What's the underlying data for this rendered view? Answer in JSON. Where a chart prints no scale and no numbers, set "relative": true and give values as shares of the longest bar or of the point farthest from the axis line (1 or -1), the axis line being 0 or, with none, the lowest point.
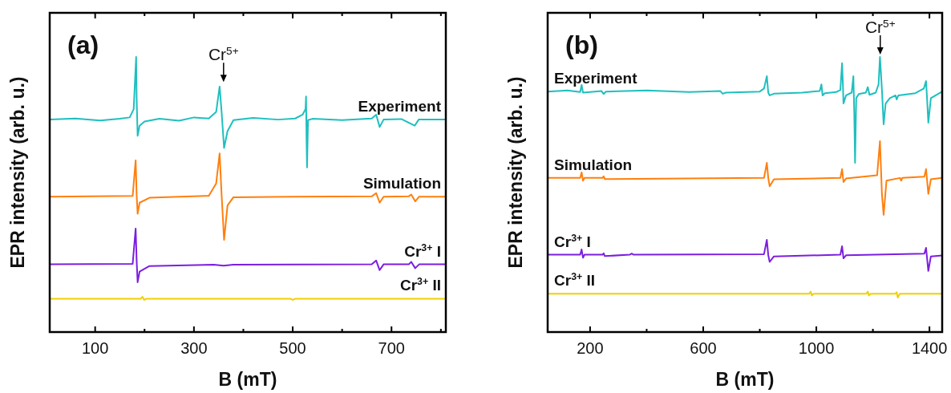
{
  "chart_data": [
    {
      "type": "line",
      "relative": true,
      "xlabel": "B (mT)",
      "ylabel": "EPR intensity (arb. u.)",
      "xlim": [
        8,
        810
      ],
      "xticks": [
        100,
        {
          "value": 200,
          "label": null
        },
        300,
        {
          "value": 400,
          "label": null
        },
        500,
        {
          "value": 600,
          "label": null
        },
        700,
        {
          "value": 800,
          "label": null
        }
      ],
      "annotations": [
        "(a)",
        {
          "text": "Cr$^{5+}$",
          "x": 360,
          "y": 0.9
        }
      ],
      "series": [
        {
          "name": "Experiment",
          "color": "#1fbfbf",
          "x": [
            8,
            60,
            110,
            150,
            170,
            178,
            183,
            184,
            186,
            190,
            200,
            230,
            270,
            300,
            330,
            345,
            352,
            356,
            361,
            368,
            380,
            420,
            470,
            505,
            520,
            526,
            527,
            528,
            529,
            531,
            540,
            600,
            660,
            669,
            676,
            684,
            720,
            747,
            755,
            810
          ],
          "values": [
            0.772,
            0.776,
            0.769,
            0.775,
            0.78,
            0.81,
            1.0,
            0.85,
            0.713,
            0.75,
            0.765,
            0.775,
            0.768,
            0.78,
            0.776,
            0.8,
            0.892,
            0.8,
            0.669,
            0.73,
            0.77,
            0.778,
            0.772,
            0.776,
            0.79,
            0.81,
            0.856,
            0.7,
            0.598,
            0.77,
            0.775,
            0.77,
            0.776,
            0.79,
            0.745,
            0.772,
            0.774,
            0.75,
            0.772,
            0.772
          ]
        },
        {
          "name": "Simulation",
          "color": "#ff7f0e",
          "x": [
            8,
            176,
            182,
            184,
            186,
            190,
            210,
            330,
            345,
            352,
            356,
            361,
            368,
            380,
            500,
            660,
            669,
            676,
            684,
            735,
            740,
            748,
            756,
            810
          ],
          "values": [
            0.492,
            0.495,
            0.624,
            0.5,
            0.43,
            0.47,
            0.488,
            0.495,
            0.54,
            0.649,
            0.5,
            0.335,
            0.46,
            0.49,
            0.492,
            0.493,
            0.505,
            0.47,
            0.492,
            0.493,
            0.5,
            0.475,
            0.492,
            0.492
          ]
        },
        {
          "name": "Cr$^{3+}$ I",
          "color": "#7b1fe0",
          "x": [
            8,
            176,
            182,
            184,
            186,
            190,
            210,
            340,
            360,
            380,
            660,
            669,
            676,
            684,
            735,
            740,
            748,
            756,
            810
          ],
          "values": [
            0.246,
            0.248,
            0.376,
            0.26,
            0.181,
            0.22,
            0.24,
            0.245,
            0.241,
            0.245,
            0.246,
            0.26,
            0.225,
            0.246,
            0.246,
            0.255,
            0.232,
            0.246,
            0.246
          ]
        },
        {
          "name": "Cr$^{3+}$ II",
          "color": "#f0d000",
          "x": [
            8,
            192,
            196,
            199,
            204,
            495,
            500,
            505,
            810
          ],
          "values": [
            0.121,
            0.121,
            0.128,
            0.117,
            0.121,
            0.121,
            0.117,
            0.121,
            0.121
          ]
        }
      ]
    },
    {
      "type": "line",
      "relative": true,
      "xlabel": "B (mT)",
      "ylabel": "EPR intensity (arb. u.)",
      "xlim": [
        50,
        1445
      ],
      "xticks": [
        200,
        {
          "value": 400,
          "label": null
        },
        600,
        {
          "value": 800,
          "label": null
        },
        1000,
        {
          "value": 1200,
          "label": null
        },
        1400
      ],
      "annotations": [
        "(b)",
        {
          "text": "Cr$^{5+}$",
          "x": 1226,
          "y": 1.0
        }
      ],
      "series": [
        {
          "name": "Experiment",
          "color": "#1fbfbf",
          "x": [
            50,
            120,
            165,
            170,
            175,
            240,
            248,
            256,
            400,
            550,
            660,
            669,
            680,
            800,
            815,
            825,
            830,
            835,
            850,
            950,
            1012,
            1018,
            1022,
            1030,
            1070,
            1085,
            1091,
            1094,
            1096,
            1105,
            1125,
            1131,
            1134,
            1137,
            1141,
            1150,
            1175,
            1182,
            1188,
            1210,
            1220,
            1225,
            1232,
            1238,
            1245,
            1260,
            1280,
            1284,
            1290,
            1350,
            1380,
            1388,
            1392,
            1396,
            1405,
            1445
          ],
          "values": [
            0.874,
            0.878,
            0.872,
            0.898,
            0.87,
            0.876,
            0.865,
            0.874,
            0.878,
            0.872,
            0.876,
            0.866,
            0.87,
            0.874,
            0.885,
            0.93,
            0.87,
            0.86,
            0.866,
            0.87,
            0.876,
            0.9,
            0.86,
            0.868,
            0.872,
            0.88,
            0.977,
            0.9,
            0.831,
            0.86,
            0.87,
            0.93,
            0.8,
            0.615,
            0.85,
            0.865,
            0.87,
            0.89,
            0.862,
            0.87,
            0.9,
            1.0,
            0.88,
            0.755,
            0.83,
            0.85,
            0.86,
            0.845,
            0.86,
            0.868,
            0.885,
            0.912,
            0.84,
            0.761,
            0.85,
            0.874
          ]
        },
        {
          "name": "Simulation",
          "color": "#ff7f0e",
          "x": [
            50,
            165,
            170,
            175,
            180,
            244,
            248,
            252,
            815,
            825,
            830,
            835,
            850,
            1085,
            1091,
            1096,
            1105,
            1215,
            1225,
            1232,
            1238,
            1248,
            1296,
            1300,
            1304,
            1382,
            1388,
            1396,
            1405,
            1445
          ],
          "values": [
            0.56,
            0.56,
            0.58,
            0.55,
            0.56,
            0.56,
            0.566,
            0.556,
            0.56,
            0.615,
            0.56,
            0.53,
            0.555,
            0.56,
            0.592,
            0.545,
            0.558,
            0.57,
            0.694,
            0.5,
            0.426,
            0.55,
            0.56,
            0.55,
            0.56,
            0.565,
            0.592,
            0.502,
            0.555,
            0.56
          ]
        },
        {
          "name": "Cr$^{3+}$ I",
          "color": "#7b1fe0",
          "x": [
            50,
            165,
            170,
            175,
            180,
            244,
            248,
            252,
            340,
            347,
            354,
            815,
            825,
            830,
            835,
            850,
            1085,
            1091,
            1096,
            1105,
            1382,
            1388,
            1396,
            1405,
            1445
          ],
          "values": [
            0.281,
            0.281,
            0.3,
            0.27,
            0.281,
            0.281,
            0.286,
            0.276,
            0.281,
            0.285,
            0.281,
            0.283,
            0.335,
            0.28,
            0.255,
            0.275,
            0.281,
            0.312,
            0.268,
            0.279,
            0.285,
            0.306,
            0.222,
            0.275,
            0.278
          ]
        },
        {
          "name": "Cr$^{3+}$ II",
          "color": "#f0d000",
          "x": [
            50,
            975,
            980,
            984,
            990,
            1177,
            1182,
            1186,
            1192,
            1280,
            1284,
            1288,
            1295,
            1445
          ],
          "values": [
            0.139,
            0.139,
            0.147,
            0.133,
            0.139,
            0.139,
            0.147,
            0.133,
            0.139,
            0.139,
            0.145,
            0.125,
            0.139,
            0.139
          ]
        }
      ]
    }
  ]
}
